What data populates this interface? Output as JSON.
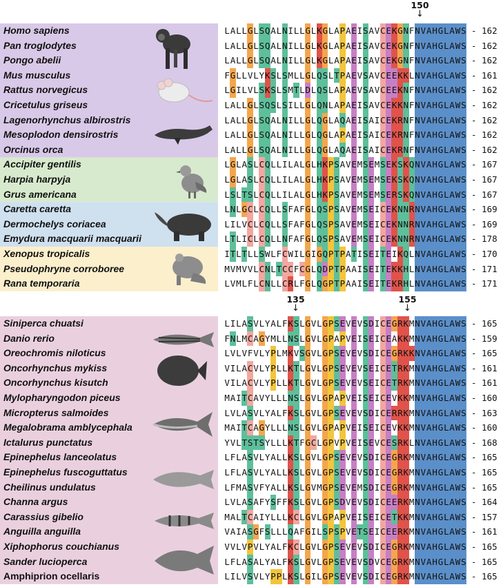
{
  "colors": {
    "mammals": "#d9c9e8",
    "birds": "#d7eacd",
    "reptiles": "#cfe0ef",
    "amphibians": "#fbefcc",
    "fish": "#ead0df",
    "residue_hydrophobic": "#5b8fc9",
    "residue_G": "#f4a64d",
    "residue_P": "#f2c53d",
    "residue_polar": "#5ebf9b",
    "residue_acidic": "#c77fc6",
    "residue_basic": "#e0534a",
    "residue_C": "#f2a7a0"
  },
  "top_panel": {
    "marker": {
      "label": "150",
      "position": 31
    },
    "rows": [
      {
        "name": "Homo sapiens",
        "seq": "LALLGLSQALNILLGLKGLAPAEISAVCEKGNFNVAHGLAWS",
        "end": "- 162",
        "group": "mammals"
      },
      {
        "name": "Pan troglodytes",
        "seq": "LALLGLSQALNILLGLKGLAPAEISAVCEKGNFNVAHGLAWS",
        "end": "- 162",
        "group": "mammals"
      },
      {
        "name": "Pongo abelii",
        "seq": "LALLGLSQALNILLGLKGLAPAEISAVCEKGNFNVAHGLAWS",
        "end": "- 162",
        "group": "mammals"
      },
      {
        "name": "Mus musculus",
        "seq": "FGLLVLYKSLSMLLGLQSLTPAEVSAVCEEKKLNVAHGLAWS",
        "end": "- 161",
        "group": "mammals"
      },
      {
        "name": "Rattus norvegicus",
        "seq": "LGILVLSKSLSMTLDLQSLAPAEVSAVCEEKNFNVAHGLAWS",
        "end": "- 162",
        "group": "mammals"
      },
      {
        "name": "Cricetulus griseus",
        "seq": "LALLGLSQSLSILLGLQNLAPAEISAVCEKKNFNVAHGLAWS",
        "end": "- 162",
        "group": "mammals"
      },
      {
        "name": "Lagenorhynchus albirostris",
        "seq": "LALLGLSQALNILLGLQGLAQAEISAICEKRNFNVAHGLAWS",
        "end": "- 162",
        "group": "mammals"
      },
      {
        "name": "Mesoplodon densirostris",
        "seq": "LALLGLSQALNILLGLQGLAPAEISAICEKRNFNVAHGLAWS",
        "end": "- 162",
        "group": "mammals"
      },
      {
        "name": "Orcinus orca",
        "seq": "LALLGLSQALNILLGLQGLAQAEISAICEKRNFNVAHGLAWS",
        "end": "- 162",
        "group": "mammals"
      },
      {
        "name": "Accipiter gentilis",
        "seq": "LGLASLCQLLILALGLHKPSAVEMSEMSEKSKQNVAHGLAWS",
        "end": "- 167",
        "group": "birds"
      },
      {
        "name": "Harpia harpyja",
        "seq": "LGLASLCQLLILALGLHKPSAVEMSEMSEKSKQNVAHGLAWS",
        "end": "- 167",
        "group": "birds"
      },
      {
        "name": "Grus americana",
        "seq": "LSLTSLCQLLILALGLHKPSAVEMSEMSERSKQNVAHGLAWS",
        "end": "- 167",
        "group": "birds"
      },
      {
        "name": "Caretta caretta",
        "seq": "LNLGCLCQLLSFAFGLQSPSAVEMSEICEKNNRNVAHGLAWS",
        "end": "- 169",
        "group": "reptiles"
      },
      {
        "name": "Dermochelys coriacea",
        "seq": "LILVCLCQLLSFAFGLQSPSAVEMSEICEKNNRNVAHGLAWS",
        "end": "- 169",
        "group": "reptiles"
      },
      {
        "name": "Emydura macquarii macquarii",
        "seq": "LTLICLCQLLNFAFGLQSPSAVEMSEICEKNNRNVAHGLAWS",
        "end": "- 178",
        "group": "reptiles"
      },
      {
        "name": "Xenopus tropicalis",
        "seq": "ITLTLLSWLFCWILGIGQPTPATISEITEIKQLNVAHGLAWS",
        "end": "- 170",
        "group": "amphibians"
      },
      {
        "name": "Pseudophryne corroboree",
        "seq": "MVMVVLCNLTCCFCGLQDPTPAAISEITEKKHLNVAHGLAWS",
        "end": "- 171",
        "group": "amphibians"
      },
      {
        "name": "Rana temporaria",
        "seq": "LVMLFLCNLLCRLFGLQGPTPAAISEITEKRHLNVAHGLAWS",
        "end": "- 171",
        "group": "amphibians"
      }
    ]
  },
  "bottom_panel": {
    "markers": [
      {
        "label": "135",
        "position": 11
      },
      {
        "label": "155",
        "position": 29
      }
    ],
    "rows": [
      {
        "name": "Siniperca chuatsi",
        "seq": "LILASVLYALFKSLGVLGPSEVEVSDICEGRKMNVAHGLAWS",
        "end": "- 165"
      },
      {
        "name": "Danio rerio",
        "seq": "FNLMCAGYMLLNSLGVLGPAPVEISEICEAKKMNVAHGLAWS",
        "end": "- 159"
      },
      {
        "name": "Oreochromis niloticus",
        "seq": "LVLVFVLYPLMKVSGVLGPSEVEVSDICEGRKKNVAHGLAWS",
        "end": "- 165"
      },
      {
        "name": "Oncorhynchus mykiss",
        "seq": "VILACVLYPLLKTLGVLGPSEVEVSEICETRKMNVAHGLAWS",
        "end": "- 161"
      },
      {
        "name": "Oncorhynchus kisutch",
        "seq": "VILACVLYPLLKTLGVLGPSEVEVSEICETRKMNVAHGLAWS",
        "end": "- 161"
      },
      {
        "name": "Mylopharyngodon piceus",
        "seq": "MAITCAVYLLLNSLGVLGPAPVEISEICEVKKMNVAHGLAWS",
        "end": "- 160"
      },
      {
        "name": "Micropterus salmoides",
        "seq": "LVLASVLYALFKSLGVLGPSEVEVSDICERRKMNVAHGLAWS",
        "end": "- 163"
      },
      {
        "name": "Megalobrama amblycephala",
        "seq": "MAITCAGYLLLNSLGVLGPAPVEISEICEVKKMNVAHGLAWS",
        "end": "- 160"
      },
      {
        "name": "Ictalurus punctatus",
        "seq": "YVLTSTSYLLLKTFGCLGPVPVEISEVCESRKLNVAHGLAWS",
        "end": "- 168"
      },
      {
        "name": "Epinephelus lanceolatus",
        "seq": "LFLASVLYALLKSLGVLGPSEVEVSDICEGRKMNVAHGLAWS",
        "end": "- 165"
      },
      {
        "name": "Epinephelus fuscoguttatus",
        "seq": "LFLASVLYALLKSLGVLGPSEVEVSDICEGRKMNVAHGLAWS",
        "end": "- 165"
      },
      {
        "name": "Cheilinus undulatus",
        "seq": "LFMASVFYALLKSLGVMGPSEVEMSDICEGRKMNVAHGLAWS",
        "end": "- 165"
      },
      {
        "name": "Channa argus",
        "seq": "LVLASAFYSFFKSLGVLGPSDVEVSDICEERKMNVAHGLAWS",
        "end": "- 164"
      },
      {
        "name": "Carassius gibelio",
        "seq": "MALTCAIYLLLKCLGVLGPAPVEISEICETKKMNVAHGLAWS",
        "end": "- 157"
      },
      {
        "name": "Anguilla anguilla",
        "seq": "VAIASGFSLLLQAFGILSPSPVETSEICEERKMNVAHGLAWS",
        "end": "- 161"
      },
      {
        "name": "Xiphophorus couchianus",
        "seq": "VVLVPVLYALFKCLGVLGPSEVEVSDICEGRKMNVAHGLAWS",
        "end": "- 165"
      },
      {
        "name": "Sander lucioperca",
        "seq": "LFLASALYALFKSLGVLGPSEVEVSDVCEGRKMNVAHGLAWS",
        "end": "- 165"
      },
      {
        "name": "Amphiprion ocellaris",
        "seq": "LILVSVLYPPLKSLGILGPSEVEVSDICEGRKMNVAHGLAWS",
        "end": "- 165",
        "upright": true
      }
    ]
  }
}
